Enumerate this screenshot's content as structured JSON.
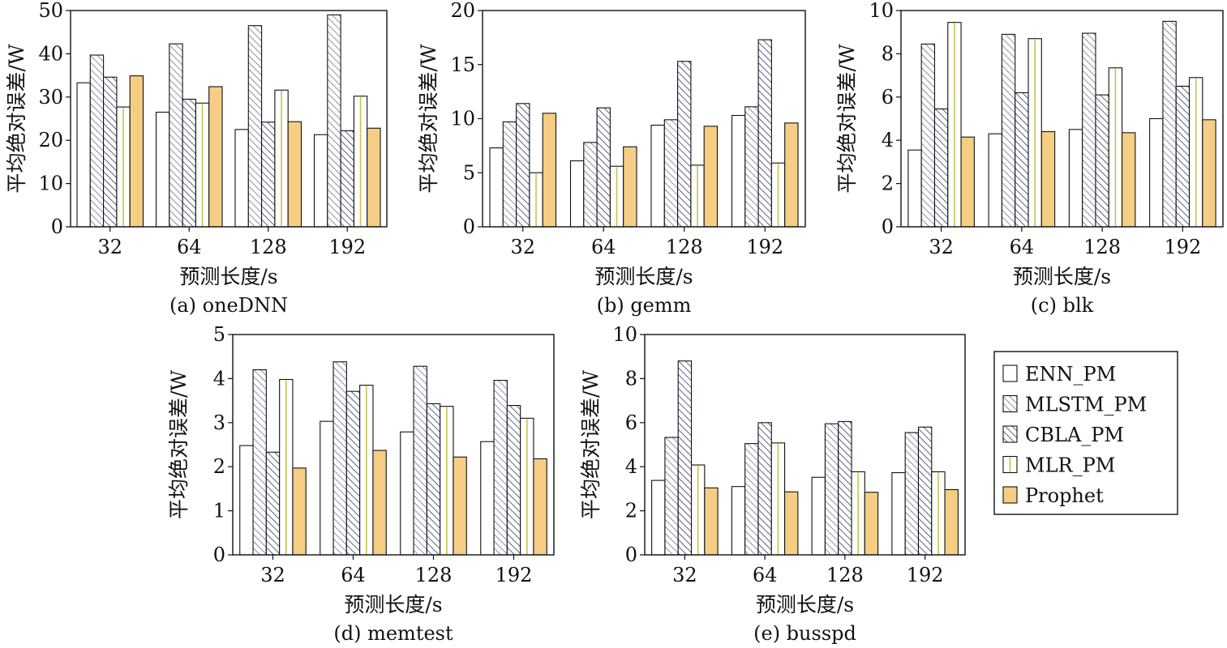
{
  "legend": {
    "placement": "right",
    "items": [
      {
        "name": "ENN_PM",
        "fill": "white"
      },
      {
        "name": "MLSTM_PM",
        "fill": "hatch-back-purple"
      },
      {
        "name": "CBLA_PM",
        "fill": "hatch-back-navy"
      },
      {
        "name": "MLR_PM",
        "fill": "yellow-center-line"
      },
      {
        "name": "Prophet",
        "fill": "orange"
      }
    ]
  },
  "colors": {
    "axis": "#111111",
    "prophet": "#f5cd85",
    "mlstm_hatch": "#6a5a8c",
    "cbla_hatch": "#2e3d66",
    "mlr_line": "#c9c24a"
  },
  "chart_data": [
    {
      "id": "a",
      "type": "bar",
      "caption": "(a) oneDNN",
      "xlabel": "预测长度/s",
      "ylabel": "平均绝对误差/W",
      "categories": [
        "32",
        "64",
        "128",
        "192"
      ],
      "ylim": [
        0,
        50
      ],
      "yticks": [
        0,
        10,
        20,
        30,
        40,
        50
      ],
      "series": [
        {
          "name": "ENN_PM",
          "values": [
            33.3,
            26.5,
            22.5,
            21.3
          ]
        },
        {
          "name": "MLSTM_PM",
          "values": [
            39.7,
            42.3,
            46.5,
            49.0
          ]
        },
        {
          "name": "CBLA_PM",
          "values": [
            34.6,
            29.5,
            24.2,
            22.2
          ]
        },
        {
          "name": "MLR_PM",
          "values": [
            27.7,
            28.6,
            31.6,
            30.2
          ]
        },
        {
          "name": "Prophet",
          "values": [
            34.9,
            32.4,
            24.3,
            22.8
          ]
        }
      ]
    },
    {
      "id": "b",
      "type": "bar",
      "caption": "(b) gemm",
      "xlabel": "预测长度/s",
      "ylabel": "平均绝对误差/W",
      "categories": [
        "32",
        "64",
        "128",
        "192"
      ],
      "ylim": [
        0,
        20
      ],
      "yticks": [
        0,
        5,
        10,
        15,
        20
      ],
      "series": [
        {
          "name": "ENN_PM",
          "values": [
            7.3,
            6.1,
            9.4,
            10.3
          ]
        },
        {
          "name": "MLSTM_PM",
          "values": [
            9.7,
            7.8,
            9.9,
            11.1
          ]
        },
        {
          "name": "CBLA_PM",
          "values": [
            11.4,
            11.0,
            15.3,
            17.3
          ]
        },
        {
          "name": "MLR_PM",
          "values": [
            5.0,
            5.6,
            5.7,
            5.9
          ]
        },
        {
          "name": "Prophet",
          "values": [
            10.5,
            7.4,
            9.3,
            9.6
          ]
        }
      ]
    },
    {
      "id": "c",
      "type": "bar",
      "caption": "(c) blk",
      "xlabel": "预测长度/s",
      "ylabel": "平均绝对误差/W",
      "categories": [
        "32",
        "64",
        "128",
        "192"
      ],
      "ylim": [
        0,
        10
      ],
      "yticks": [
        0,
        2,
        4,
        6,
        8,
        10
      ],
      "series": [
        {
          "name": "ENN_PM",
          "values": [
            3.55,
            4.3,
            4.5,
            5.0
          ]
        },
        {
          "name": "MLSTM_PM",
          "values": [
            8.45,
            8.9,
            8.95,
            9.5
          ]
        },
        {
          "name": "CBLA_PM",
          "values": [
            5.45,
            6.2,
            6.1,
            6.5
          ]
        },
        {
          "name": "MLR_PM",
          "values": [
            9.45,
            8.7,
            7.35,
            6.9
          ]
        },
        {
          "name": "Prophet",
          "values": [
            4.15,
            4.4,
            4.35,
            4.95
          ]
        }
      ]
    },
    {
      "id": "d",
      "type": "bar",
      "caption": "(d) memtest",
      "xlabel": "预测长度/s",
      "ylabel": "平均绝对误差/W",
      "categories": [
        "32",
        "64",
        "128",
        "192"
      ],
      "ylim": [
        0,
        5
      ],
      "yticks": [
        0,
        1,
        2,
        3,
        4,
        5
      ],
      "series": [
        {
          "name": "ENN_PM",
          "values": [
            2.48,
            3.03,
            2.79,
            2.57
          ]
        },
        {
          "name": "MLSTM_PM",
          "values": [
            4.2,
            4.38,
            4.28,
            3.96
          ]
        },
        {
          "name": "CBLA_PM",
          "values": [
            2.33,
            3.71,
            3.43,
            3.39
          ]
        },
        {
          "name": "MLR_PM",
          "values": [
            3.98,
            3.85,
            3.37,
            3.1
          ]
        },
        {
          "name": "Prophet",
          "values": [
            1.97,
            2.37,
            2.22,
            2.18
          ]
        }
      ]
    },
    {
      "id": "e",
      "type": "bar",
      "caption": "(e) busspd",
      "xlabel": "预测长度/s",
      "ylabel": "平均绝对误差/W",
      "categories": [
        "32",
        "64",
        "128",
        "192"
      ],
      "ylim": [
        0,
        10
      ],
      "yticks": [
        0,
        2,
        4,
        6,
        8,
        10
      ],
      "series": [
        {
          "name": "ENN_PM",
          "values": [
            3.38,
            3.1,
            3.52,
            3.73
          ]
        },
        {
          "name": "MLSTM_PM",
          "values": [
            5.33,
            5.05,
            5.95,
            5.55
          ]
        },
        {
          "name": "CBLA_PM",
          "values": [
            8.8,
            6.0,
            6.05,
            5.8
          ]
        },
        {
          "name": "MLR_PM",
          "values": [
            4.08,
            5.08,
            3.77,
            3.77
          ]
        },
        {
          "name": "Prophet",
          "values": [
            3.04,
            2.86,
            2.84,
            2.96
          ]
        }
      ]
    }
  ]
}
